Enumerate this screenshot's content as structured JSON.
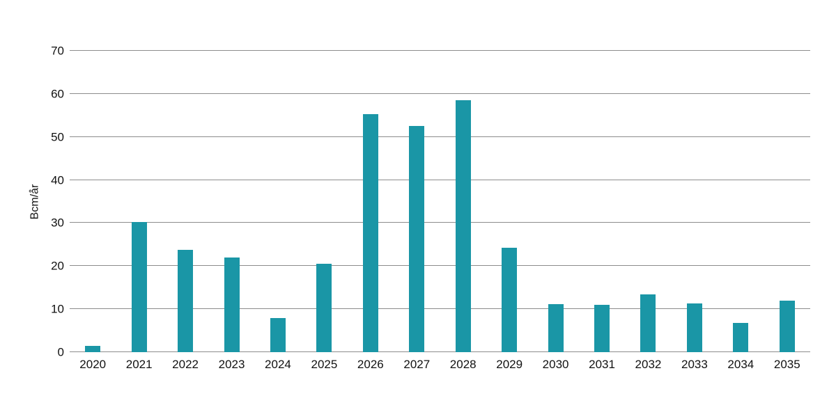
{
  "chart_data": {
    "type": "bar",
    "title": "",
    "xlabel": "",
    "ylabel": "Bcm/år",
    "categories": [
      "2020",
      "2021",
      "2022",
      "2023",
      "2024",
      "2025",
      "2026",
      "2027",
      "2028",
      "2029",
      "2030",
      "2031",
      "2032",
      "2033",
      "2034",
      "2035"
    ],
    "values": [
      1.5,
      30.3,
      23.8,
      22.0,
      7.9,
      20.5,
      55.3,
      52.6,
      58.6,
      24.3,
      11.1,
      11.0,
      13.5,
      11.3,
      6.8,
      11.9
    ],
    "ylim": [
      0,
      70
    ],
    "yticks": [
      0,
      10,
      20,
      30,
      40,
      50,
      60,
      70
    ],
    "grid": true,
    "legend_position": "none",
    "bar_color": "#1a96a6",
    "gridline_color": "#8c8c8c",
    "text_color": "#111111",
    "background_color": "#ffffff"
  }
}
